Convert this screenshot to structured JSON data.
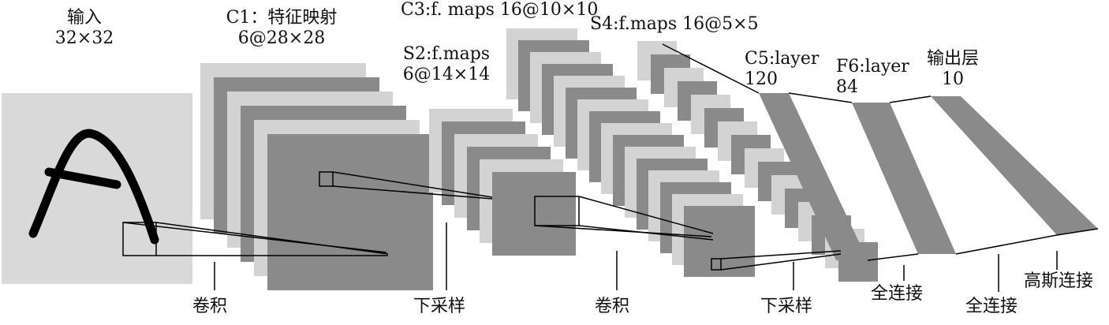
{
  "stages": {
    "input": {
      "name": "输入",
      "size": "32×32",
      "letter": "A"
    },
    "c1": {
      "name": "C1：特征映射",
      "size": "6@28×28",
      "count": 6
    },
    "s2": {
      "name": "S2:f.maps",
      "size": "6@14×14",
      "count": 6
    },
    "c3": {
      "name": "C3:f. maps 16@10×10",
      "count": 16
    },
    "s4": {
      "name": "S4:f.maps 16@5×5",
      "count": 16
    },
    "c5": {
      "name": "C5:layer",
      "size": "120"
    },
    "f6": {
      "name": "F6:layer",
      "size": "84"
    },
    "output": {
      "name": "输出层",
      "size": "10"
    }
  },
  "operations": [
    {
      "label": "卷积"
    },
    {
      "label": "下采样"
    },
    {
      "label": "卷积"
    },
    {
      "label": "下采样"
    },
    {
      "label": "全连接"
    },
    {
      "label": "全连接"
    },
    {
      "label": "高斯连接"
    }
  ],
  "colors": {
    "dark": "#8a8a8a",
    "light": "#d3d3d3",
    "input_bg": "#d9d9d9",
    "stroke": "#000000"
  }
}
